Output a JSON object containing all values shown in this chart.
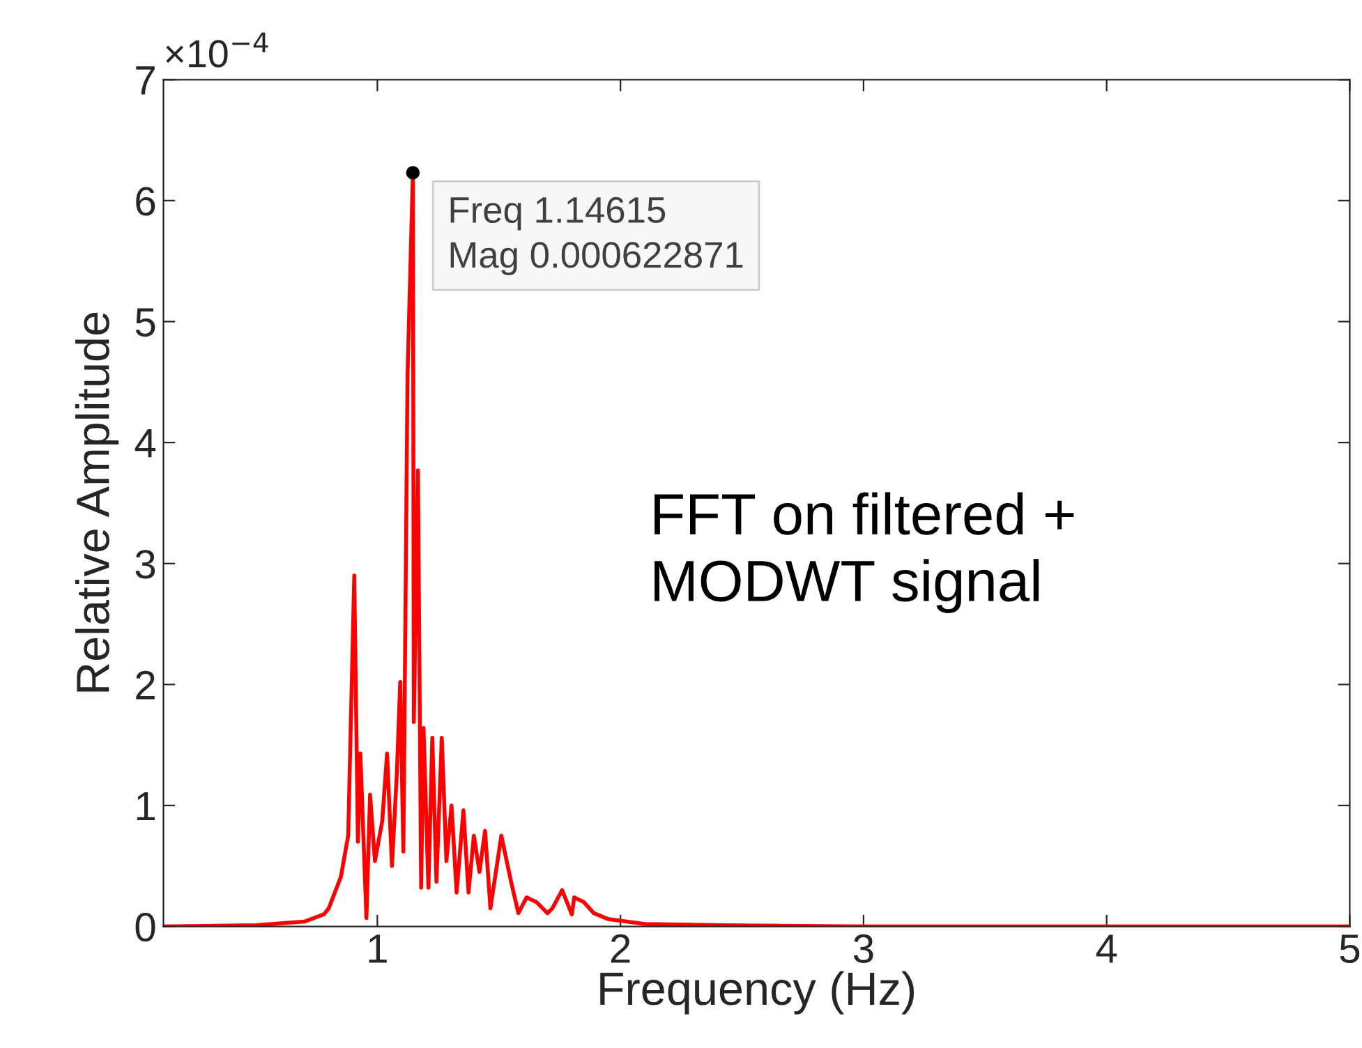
{
  "chart_data": {
    "type": "line",
    "xlabel": "Frequency (Hz)",
    "ylabel": "Relative Amplitude",
    "x": [
      0.12,
      0.5,
      0.7,
      0.78,
      0.8,
      0.85,
      0.88,
      0.905,
      0.92,
      0.93,
      0.955,
      0.97,
      0.99,
      1.02,
      1.04,
      1.06,
      1.08,
      1.094,
      1.107,
      1.124,
      1.14615,
      1.15,
      1.167,
      1.18,
      1.19,
      1.21,
      1.226,
      1.243,
      1.265,
      1.284,
      1.305,
      1.326,
      1.354,
      1.375,
      1.397,
      1.42,
      1.443,
      1.465,
      1.51,
      1.55,
      1.58,
      1.614,
      1.655,
      1.7,
      1.72,
      1.76,
      1.8,
      1.81,
      1.85,
      1.89,
      1.95,
      2.1,
      2.4,
      3,
      5
    ],
    "series": [
      {
        "color": "#ff0000",
        "values": [
          0,
          0.01,
          0.04,
          0.1,
          0.15,
          0.41,
          0.75,
          2.9,
          0.7,
          1.43,
          0.07,
          1.09,
          0.54,
          0.87,
          1.43,
          0.5,
          1.26,
          2.02,
          0.62,
          4.55,
          6.23,
          1.69,
          3.77,
          0.32,
          1.64,
          0.32,
          1.56,
          0.37,
          1.56,
          0.54,
          1.0,
          0.28,
          0.96,
          0.28,
          0.75,
          0.45,
          0.79,
          0.15,
          0.75,
          0.37,
          0.11,
          0.24,
          0.2,
          0.11,
          0.15,
          0.3,
          0.1,
          0.24,
          0.2,
          0.11,
          0.06,
          0.02,
          0.01,
          0,
          0
        ]
      }
    ],
    "xlim": [
      0.12,
      5
    ],
    "xticks": [
      1,
      2,
      3,
      4,
      5
    ],
    "ylim": [
      0,
      7
    ],
    "yticks": [
      0,
      1,
      2,
      3,
      4,
      5,
      6,
      7
    ],
    "grid": false,
    "marker": "none",
    "line_style": "solid",
    "annotations": [
      "×10$^{−4}$",
      {
        "text": "Freq 1.14615\nMag 0.000622871",
        "x": 1.14615,
        "y": 6.23
      },
      "FFT on filtered +\nMODWT signal"
    ]
  }
}
